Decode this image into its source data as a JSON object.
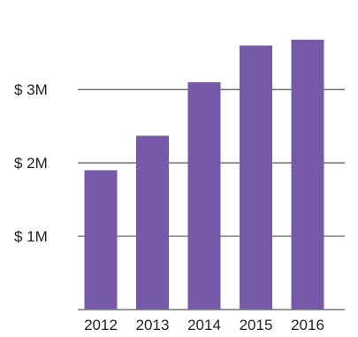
{
  "chart_data": {
    "type": "bar",
    "categories": [
      "2012",
      "2013",
      "2014",
      "2015",
      "2016"
    ],
    "values": [
      1.9,
      2.37,
      3.1,
      3.6,
      3.68
    ],
    "title": "",
    "xlabel": "",
    "ylabel": "",
    "ylim": [
      0,
      4.1
    ],
    "yticks": [
      1,
      2,
      3
    ],
    "ytick_labels": [
      "$ 1M",
      "$ 2M",
      "$ 3M"
    ],
    "grid": true,
    "legend": "none",
    "bar_color": "#7659a8",
    "grid_color": "#555555"
  }
}
